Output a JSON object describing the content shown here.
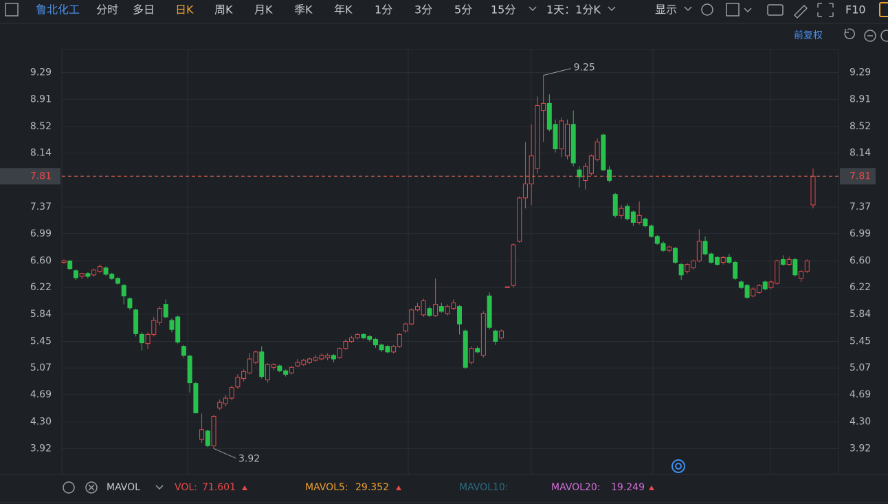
{
  "toolbar": {
    "items": [
      "鲁北化工",
      "分时",
      "多日",
      "日K",
      "周K",
      "月K",
      "季K",
      "年K",
      "1分",
      "3分",
      "5分",
      "15分",
      "1天：1分K",
      "显示",
      "F10"
    ]
  },
  "subbar": {
    "adjust": "前复权"
  },
  "indicator": {
    "name": "MAVOL",
    "vol_label": "VOL:",
    "vol": 71.601,
    "ma5_label": "MAVOL5:",
    "ma5": 29.352,
    "ma10_label": "MAVOL10:",
    "ma20_label": "MAVOL20:",
    "ma20": 19.249
  },
  "chart_data": {
    "type": "candlestick",
    "up_color": "#e84a4a",
    "down_color": "#27c24c",
    "ylim": [
      3.55,
      9.62
    ],
    "yticks": [
      {
        "value": 9.29,
        "label": "9.29"
      },
      8.91,
      8.52,
      8.14,
      7.37,
      6.99,
      {
        "value": 6.6,
        "label": "6.60"
      },
      6.22,
      5.84,
      5.45,
      5.07,
      4.69,
      {
        "value": 4.3,
        "label": "4.30"
      },
      3.92
    ],
    "grid": true,
    "last_price": 7.81,
    "high_label": 9.25,
    "low_label": 3.92,
    "ohlc": [
      [
        6.58,
        6.62,
        6.56,
        6.6
      ],
      [
        6.6,
        6.61,
        6.47,
        6.49
      ],
      [
        6.46,
        6.48,
        6.33,
        6.36
      ],
      [
        6.38,
        6.43,
        6.34,
        6.42
      ],
      [
        6.42,
        6.44,
        6.35,
        6.38
      ],
      [
        6.4,
        6.49,
        6.37,
        6.47
      ],
      [
        6.45,
        6.55,
        6.43,
        6.52
      ],
      [
        6.5,
        6.52,
        6.39,
        6.41
      ],
      [
        6.41,
        6.43,
        6.33,
        6.35
      ],
      [
        6.35,
        6.37,
        6.26,
        6.28
      ],
      [
        6.25,
        6.27,
        5.98,
        6.1
      ],
      [
        6.06,
        6.08,
        5.9,
        5.93
      ],
      [
        5.9,
        5.92,
        5.52,
        5.56
      ],
      [
        5.55,
        5.58,
        5.32,
        5.43
      ],
      [
        5.42,
        5.58,
        5.34,
        5.55
      ],
      [
        5.55,
        5.8,
        5.52,
        5.75
      ],
      [
        5.72,
        5.95,
        5.68,
        5.92
      ],
      [
        5.98,
        6.05,
        5.78,
        5.8
      ],
      [
        5.75,
        5.78,
        5.58,
        5.62
      ],
      [
        5.8,
        5.82,
        5.42,
        5.44
      ],
      [
        5.38,
        5.4,
        5.22,
        5.25
      ],
      [
        5.24,
        5.26,
        4.72,
        4.86
      ],
      [
        4.85,
        4.87,
        4.42,
        4.43
      ],
      [
        4.05,
        4.42,
        4.0,
        4.19
      ],
      [
        4.17,
        4.19,
        3.94,
        3.96
      ],
      [
        3.96,
        4.4,
        3.92,
        4.38
      ],
      [
        4.5,
        4.62,
        4.47,
        4.58
      ],
      [
        4.56,
        4.68,
        4.52,
        4.64
      ],
      [
        4.64,
        4.82,
        4.61,
        4.79
      ],
      [
        4.8,
        4.98,
        4.77,
        4.94
      ],
      [
        4.92,
        5.05,
        4.88,
        5.02
      ],
      [
        5.0,
        5.28,
        4.98,
        5.2
      ],
      [
        5.15,
        5.32,
        5.12,
        5.3
      ],
      [
        5.3,
        5.38,
        4.92,
        4.95
      ],
      [
        4.9,
        5.14,
        4.86,
        5.12
      ],
      [
        5.08,
        5.14,
        5.04,
        5.12
      ],
      [
        5.1,
        5.12,
        5.01,
        5.03
      ],
      [
        5.03,
        5.05,
        4.95,
        4.98
      ],
      [
        5.0,
        5.1,
        4.98,
        5.08
      ],
      [
        5.1,
        5.2,
        5.08,
        5.15
      ],
      [
        5.12,
        5.2,
        5.1,
        5.18
      ],
      [
        5.15,
        5.22,
        5.13,
        5.2
      ],
      [
        5.18,
        5.26,
        5.16,
        5.22
      ],
      [
        5.2,
        5.28,
        5.18,
        5.25
      ],
      [
        5.22,
        5.28,
        5.18,
        5.25
      ],
      [
        5.25,
        5.27,
        5.15,
        5.2
      ],
      [
        5.22,
        5.37,
        5.2,
        5.35
      ],
      [
        5.35,
        5.48,
        5.33,
        5.45
      ],
      [
        5.45,
        5.53,
        5.43,
        5.5
      ],
      [
        5.5,
        5.57,
        5.48,
        5.55
      ],
      [
        5.55,
        5.57,
        5.48,
        5.5
      ],
      [
        5.52,
        5.54,
        5.45,
        5.48
      ],
      [
        5.48,
        5.5,
        5.36,
        5.4
      ],
      [
        5.4,
        5.42,
        5.3,
        5.33
      ],
      [
        5.38,
        5.4,
        5.28,
        5.3
      ],
      [
        5.3,
        5.4,
        5.28,
        5.38
      ],
      [
        5.38,
        5.57,
        5.36,
        5.55
      ],
      [
        5.6,
        5.72,
        5.57,
        5.7
      ],
      [
        5.7,
        5.92,
        5.68,
        5.9
      ],
      [
        5.9,
        6.0,
        5.88,
        5.95
      ],
      [
        5.83,
        6.06,
        5.8,
        6.03
      ],
      [
        5.92,
        5.95,
        5.8,
        5.82
      ],
      [
        5.82,
        6.35,
        5.8,
        5.98
      ],
      [
        5.95,
        6.0,
        5.86,
        5.88
      ],
      [
        5.85,
        5.98,
        5.82,
        5.95
      ],
      [
        5.92,
        6.05,
        5.9,
        6.0
      ],
      [
        5.95,
        5.97,
        5.55,
        5.7
      ],
      [
        5.6,
        5.62,
        5.06,
        5.08
      ],
      [
        5.15,
        5.38,
        5.12,
        5.35
      ],
      [
        5.35,
        5.38,
        5.28,
        5.3
      ],
      [
        5.25,
        5.88,
        5.22,
        5.85
      ],
      [
        6.1,
        6.15,
        5.62,
        5.65
      ],
      [
        5.6,
        5.62,
        5.4,
        5.45
      ],
      [
        5.5,
        5.62,
        5.48,
        5.6
      ],
      [
        6.22,
        6.23,
        6.22,
        6.23
      ],
      [
        6.25,
        6.85,
        6.22,
        6.83
      ],
      [
        6.88,
        7.52,
        6.86,
        7.5
      ],
      [
        7.5,
        8.3,
        7.35,
        7.7
      ],
      [
        7.7,
        8.55,
        7.4,
        8.1
      ],
      [
        7.92,
        8.95,
        7.85,
        8.82
      ],
      [
        8.75,
        9.25,
        8.3,
        8.85
      ],
      [
        8.85,
        8.98,
        8.45,
        8.48
      ],
      [
        8.55,
        8.62,
        8.15,
        8.2
      ],
      [
        8.2,
        8.65,
        8.08,
        8.6
      ],
      [
        8.1,
        8.62,
        8.05,
        8.55
      ],
      [
        8.55,
        8.75,
        7.95,
        8.0
      ],
      [
        7.9,
        7.95,
        7.65,
        7.8
      ],
      [
        7.75,
        8.0,
        7.62,
        7.95
      ],
      [
        7.85,
        8.12,
        7.82,
        8.1
      ],
      [
        8.05,
        8.35,
        8.02,
        8.3
      ],
      [
        8.4,
        8.42,
        7.88,
        7.9
      ],
      [
        7.9,
        7.95,
        7.72,
        7.75
      ],
      [
        7.55,
        7.57,
        7.22,
        7.25
      ],
      [
        7.25,
        7.4,
        7.2,
        7.35
      ],
      [
        7.38,
        7.42,
        7.18,
        7.2
      ],
      [
        7.3,
        7.32,
        7.1,
        7.15
      ],
      [
        7.15,
        7.45,
        7.12,
        7.25
      ],
      [
        7.2,
        7.22,
        7.08,
        7.1
      ],
      [
        7.1,
        7.12,
        6.93,
        6.95
      ],
      [
        6.95,
        6.97,
        6.83,
        6.85
      ],
      [
        6.85,
        6.88,
        6.73,
        6.75
      ],
      [
        6.75,
        6.82,
        6.72,
        6.8
      ],
      [
        6.78,
        6.8,
        6.56,
        6.58
      ],
      [
        6.55,
        6.57,
        6.33,
        6.4
      ],
      [
        6.45,
        6.57,
        6.42,
        6.55
      ],
      [
        6.5,
        6.62,
        6.48,
        6.6
      ],
      [
        6.6,
        7.05,
        6.58,
        6.88
      ],
      [
        6.88,
        6.95,
        6.68,
        6.7
      ],
      [
        6.7,
        6.72,
        6.56,
        6.58
      ],
      [
        6.65,
        6.67,
        6.53,
        6.55
      ],
      [
        6.58,
        6.67,
        6.55,
        6.65
      ],
      [
        6.65,
        6.7,
        6.56,
        6.58
      ],
      [
        6.58,
        6.6,
        6.33,
        6.35
      ],
      [
        6.3,
        6.32,
        6.2,
        6.22
      ],
      [
        6.25,
        6.27,
        6.06,
        6.08
      ],
      [
        6.1,
        6.22,
        6.08,
        6.2
      ],
      [
        6.15,
        6.27,
        6.13,
        6.25
      ],
      [
        6.3,
        6.32,
        6.18,
        6.2
      ],
      [
        6.22,
        6.32,
        6.2,
        6.3
      ],
      [
        6.28,
        6.62,
        6.26,
        6.6
      ],
      [
        6.62,
        6.68,
        6.53,
        6.55
      ],
      [
        6.55,
        6.66,
        6.53,
        6.62
      ],
      [
        6.62,
        6.64,
        6.38,
        6.4
      ],
      [
        6.35,
        6.47,
        6.3,
        6.45
      ],
      [
        6.45,
        6.62,
        6.43,
        6.6
      ],
      [
        7.4,
        7.92,
        7.35,
        7.81
      ]
    ]
  }
}
